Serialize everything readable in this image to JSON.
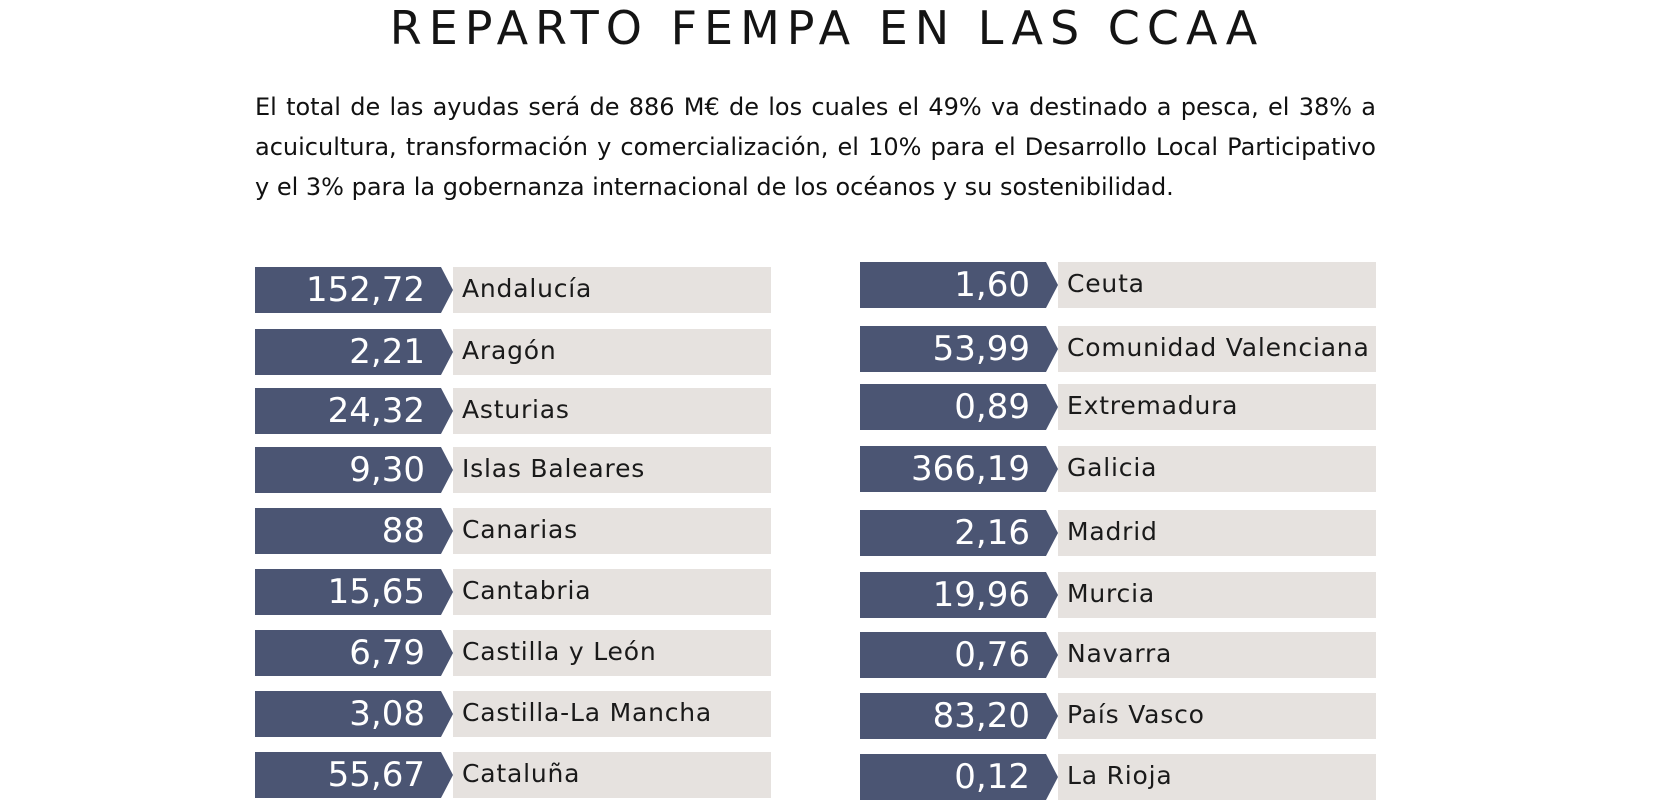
{
  "title": "REPARTO FEMPA EN LAS CCAA",
  "intro": "El total de las ayudas será de 886 M€ de los cuales el 49% va destinado a pesca, el 38% a acuicultura, transformación y comercialización, el 10% para el Desarrollo Local Participativo y el 3% para la gobernanza internacional de los océanos y su sostenibilidad.",
  "colors": {
    "value_bg": "#4b5573",
    "name_bg": "#e6e2df"
  },
  "left_column": [
    {
      "value": "152,72",
      "name": "Andalucía"
    },
    {
      "value": "2,21",
      "name": "Aragón"
    },
    {
      "value": "24,32",
      "name": "Asturias"
    },
    {
      "value": "9,30",
      "name": "Islas Baleares"
    },
    {
      "value": "88",
      "name": "Canarias"
    },
    {
      "value": "15,65",
      "name": "Cantabria"
    },
    {
      "value": "6,79",
      "name": "Castilla y León"
    },
    {
      "value": "3,08",
      "name": "Castilla-La Mancha"
    },
    {
      "value": "55,67",
      "name": "Cataluña"
    }
  ],
  "right_column": [
    {
      "value": "1,60",
      "name": "Ceuta"
    },
    {
      "value": "53,99",
      "name": "Comunidad Valenciana"
    },
    {
      "value": "0,89",
      "name": "Extremadura"
    },
    {
      "value": "366,19",
      "name": "Galicia"
    },
    {
      "value": "2,16",
      "name": "Madrid"
    },
    {
      "value": "19,96",
      "name": "Murcia"
    },
    {
      "value": "0,76",
      "name": "Navarra"
    },
    {
      "value": "83,20",
      "name": "País Vasco"
    },
    {
      "value": "0,12",
      "name": "La Rioja"
    }
  ]
}
